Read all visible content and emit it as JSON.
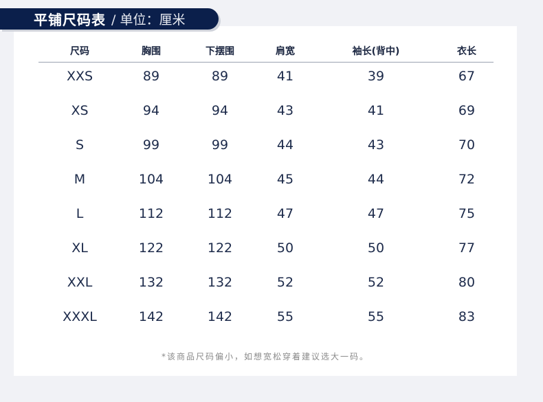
{
  "banner": {
    "title": "平铺尺码表",
    "unit": "/ 单位：厘米"
  },
  "table": {
    "headers": [
      "尺码",
      "胸围",
      "下摆围",
      "肩宽",
      "袖长(背中)",
      "衣长"
    ],
    "rows": [
      [
        "XXS",
        "89",
        "89",
        "41",
        "39",
        "67"
      ],
      [
        "XS",
        "94",
        "94",
        "43",
        "41",
        "69"
      ],
      [
        "S",
        "99",
        "99",
        "44",
        "43",
        "70"
      ],
      [
        "M",
        "104",
        "104",
        "45",
        "44",
        "72"
      ],
      [
        "L",
        "112",
        "112",
        "47",
        "47",
        "75"
      ],
      [
        "XL",
        "122",
        "122",
        "50",
        "50",
        "77"
      ],
      [
        "XXL",
        "132",
        "132",
        "52",
        "52",
        "80"
      ],
      [
        "XXXL",
        "142",
        "142",
        "55",
        "55",
        "83"
      ]
    ]
  },
  "note": "*该商品尺码偏小，如想宽松穿着建议选大一码。",
  "colors": {
    "banner": "#0b1f4b",
    "background": "#f1f2f6",
    "text": "#1c2a4a"
  }
}
